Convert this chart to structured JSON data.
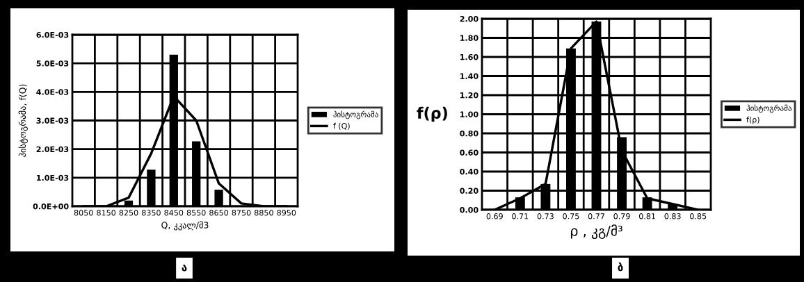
{
  "chart_data": [
    {
      "type": "bar",
      "ylabel": "ჰისტოგრამა, f(Q)",
      "xlabel": "Q, კკალ/მ3",
      "annotations": [
        "ა"
      ],
      "categories": [
        "8050",
        "8150",
        "8250",
        "8350",
        "8450",
        "8550",
        "8650",
        "8750",
        "8850",
        "8950"
      ],
      "series": [
        {
          "name": "ჰისტოგრამა",
          "color": "#000000",
          "values": [
            0,
            0,
            0.0002,
            0.00128,
            0.0053,
            0.00227,
            0.00058,
            0,
            0,
            0
          ]
        },
        {
          "name": "f (Q)",
          "type": "line",
          "color": "#000000",
          "values": [
            0,
            0,
            0.0003,
            0.00185,
            0.00385,
            0.003,
            0.0008,
            0.0001,
            0,
            0
          ]
        }
      ],
      "ylim": [
        0,
        0.006
      ],
      "yticks": [
        {
          "value": 0,
          "label": "0.0E+00"
        },
        {
          "value": 0.001,
          "label": "1.0E-03"
        },
        {
          "value": 0.002,
          "label": "2.0E-03"
        },
        {
          "value": 0.003,
          "label": "3.0E-03"
        },
        {
          "value": 0.004,
          "label": "4.0E-03"
        },
        {
          "value": 0.005,
          "label": "5.0E-03"
        },
        {
          "value": 0.006,
          "label": "6.0E-03"
        }
      ],
      "grid": true,
      "legend": "right",
      "marker": "none",
      "line_style": "solid"
    },
    {
      "type": "bar",
      "ylabel": "f(ρ)",
      "xlabel": "ρ , კგ/მ³",
      "annotations": [
        "ბ"
      ],
      "categories": [
        "0.69",
        "0.71",
        "0.73",
        "0.75",
        "0.77",
        "0.79",
        "0.81",
        "0.83",
        "0.85"
      ],
      "series": [
        {
          "name": "ჰისტოგრამა",
          "color": "#000000",
          "values": [
            0,
            0.13,
            0.27,
            1.69,
            1.97,
            0.76,
            0.13,
            0.06,
            0
          ]
        },
        {
          "name": "f(ρ)",
          "type": "line",
          "color": "#000000",
          "values": [
            0,
            0.12,
            0.27,
            1.69,
            1.97,
            0.62,
            0.12,
            0.06,
            0
          ]
        }
      ],
      "ylim": [
        0,
        2
      ],
      "yticks": [
        {
          "value": 0,
          "label": "0.00"
        },
        {
          "value": 0.2,
          "label": "0.20"
        },
        {
          "value": 0.4,
          "label": "0.40"
        },
        {
          "value": 0.6,
          "label": "0.60"
        },
        {
          "value": 0.8,
          "label": "0.80"
        },
        {
          "value": 1.0,
          "label": "1.00"
        },
        {
          "value": 1.2,
          "label": "1.20"
        },
        {
          "value": 1.4,
          "label": "1.40"
        },
        {
          "value": 1.6,
          "label": "1.60"
        },
        {
          "value": 1.8,
          "label": "1.80"
        },
        {
          "value": 2.0,
          "label": "2.00"
        }
      ],
      "grid": true,
      "legend": "right",
      "marker": "none",
      "line_style": "solid"
    }
  ]
}
